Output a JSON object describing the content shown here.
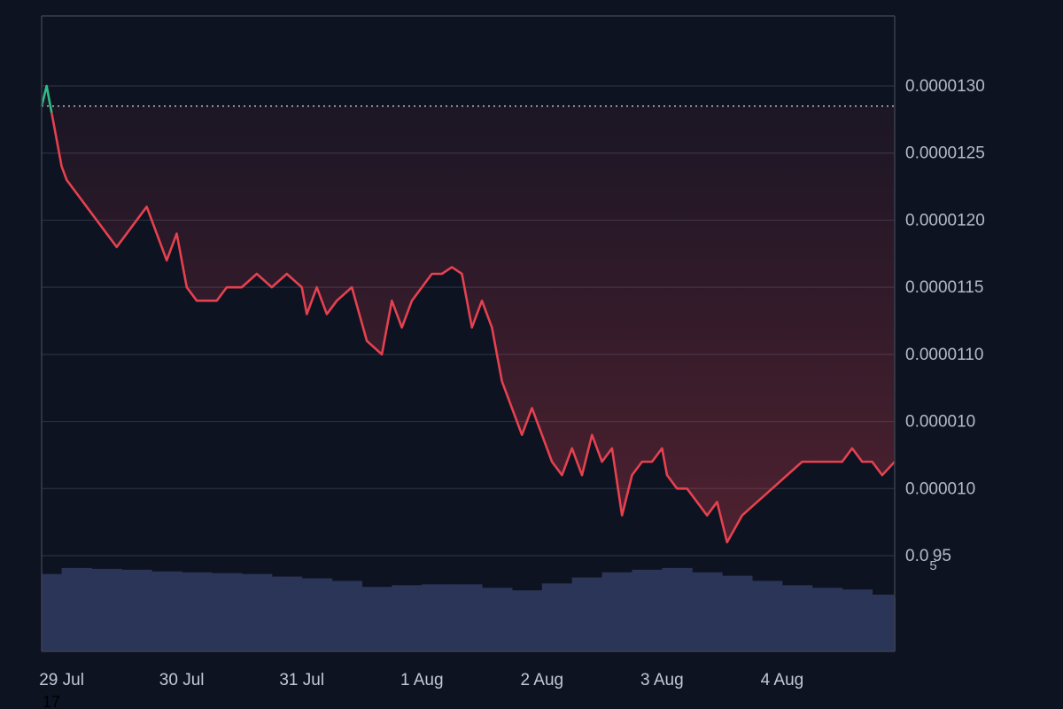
{
  "chart_data": {
    "type": "line",
    "colors": {
      "background": "#0e1322",
      "up": "#2ebd85",
      "down": "#e5414f",
      "volume": "#2b3558",
      "grid": "#2a3040",
      "frame": "#3a404e",
      "reference_line": "#c9ccd3"
    },
    "y_axis": {
      "position": "right",
      "ylim": [
        9.1e-06,
        1.35e-05
      ],
      "ticks": [
        {
          "value": 1.3e-05,
          "label": "0.0000130"
        },
        {
          "value": 1.25e-05,
          "label": "0.0000125"
        },
        {
          "value": 1.2e-05,
          "label": "0.0000120"
        },
        {
          "value": 1.15e-05,
          "label": "0.0000115"
        },
        {
          "value": 1.1e-05,
          "label": "0.0000110"
        },
        {
          "value": 1.05e-05,
          "label": "0.000010",
          "sub": ""
        },
        {
          "value": 1e-05,
          "label": "0.000010",
          "sub": ""
        },
        {
          "value": 9.5e-06,
          "label": "0.0",
          "sub": "5",
          "tail": "95"
        }
      ]
    },
    "x_axis": {
      "range": [
        "2024-07-28 20:00",
        "2024-08-04 22:30"
      ],
      "ticks": [
        {
          "date": "2024-07-29",
          "label": "29 Jul"
        },
        {
          "date": "2024-07-30",
          "label": "30 Jul"
        },
        {
          "date": "2024-07-31",
          "label": "31 Jul"
        },
        {
          "date": "2024-08-01",
          "label": "1 Aug"
        },
        {
          "date": "2024-08-02",
          "label": "2 Aug"
        },
        {
          "date": "2024-08-03",
          "label": "3 Aug"
        },
        {
          "date": "2024-08-04",
          "label": "4 Aug"
        }
      ]
    },
    "reference_value": 1.285e-05,
    "corner_label": "17",
    "price_series": {
      "name": "",
      "x": [
        "2024-07-28 20:00",
        "2024-07-28 21:00",
        "2024-07-28 22:00",
        "2024-07-28 23:00",
        "2024-07-29 00:00",
        "2024-07-29 01:00",
        "2024-07-29 03:00",
        "2024-07-29 05:00",
        "2024-07-29 07:00",
        "2024-07-29 09:00",
        "2024-07-29 11:00",
        "2024-07-29 13:00",
        "2024-07-29 15:00",
        "2024-07-29 17:00",
        "2024-07-29 19:00",
        "2024-07-29 21:00",
        "2024-07-29 23:00",
        "2024-07-30 01:00",
        "2024-07-30 03:00",
        "2024-07-30 05:00",
        "2024-07-30 07:00",
        "2024-07-30 09:00",
        "2024-07-30 12:00",
        "2024-07-30 15:00",
        "2024-07-30 18:00",
        "2024-07-30 21:00",
        "2024-07-31 00:00",
        "2024-07-31 01:00",
        "2024-07-31 03:00",
        "2024-07-31 05:00",
        "2024-07-31 07:00",
        "2024-07-31 10:00",
        "2024-07-31 13:00",
        "2024-07-31 16:00",
        "2024-07-31 18:00",
        "2024-07-31 20:00",
        "2024-07-31 22:00",
        "2024-08-01 00:00",
        "2024-08-01 02:00",
        "2024-08-01 04:00",
        "2024-08-01 06:00",
        "2024-08-01 08:00",
        "2024-08-01 10:00",
        "2024-08-01 12:00",
        "2024-08-01 14:00",
        "2024-08-01 16:00",
        "2024-08-01 18:00",
        "2024-08-01 20:00",
        "2024-08-01 22:00",
        "2024-08-02 00:00",
        "2024-08-02 02:00",
        "2024-08-02 04:00",
        "2024-08-02 06:00",
        "2024-08-02 08:00",
        "2024-08-02 10:00",
        "2024-08-02 12:00",
        "2024-08-02 14:00",
        "2024-08-02 16:00",
        "2024-08-02 18:00",
        "2024-08-02 20:00",
        "2024-08-02 22:00",
        "2024-08-03 00:00",
        "2024-08-03 01:00",
        "2024-08-03 03:00",
        "2024-08-03 05:00",
        "2024-08-03 07:00",
        "2024-08-03 09:00",
        "2024-08-03 11:00",
        "2024-08-03 13:00",
        "2024-08-03 16:00",
        "2024-08-03 19:00",
        "2024-08-03 22:00",
        "2024-08-04 01:00",
        "2024-08-04 04:00",
        "2024-08-04 06:00",
        "2024-08-04 08:00",
        "2024-08-04 10:00",
        "2024-08-04 12:00",
        "2024-08-04 14:00",
        "2024-08-04 16:00",
        "2024-08-04 18:00",
        "2024-08-04 20:00",
        "2024-08-04 22:30"
      ],
      "values": [
        1.285e-05,
        1.3e-05,
        1.28e-05,
        1.26e-05,
        1.24e-05,
        1.23e-05,
        1.22e-05,
        1.21e-05,
        1.2e-05,
        1.19e-05,
        1.18e-05,
        1.19e-05,
        1.2e-05,
        1.21e-05,
        1.19e-05,
        1.17e-05,
        1.19e-05,
        1.15e-05,
        1.14e-05,
        1.14e-05,
        1.14e-05,
        1.15e-05,
        1.15e-05,
        1.16e-05,
        1.15e-05,
        1.16e-05,
        1.15e-05,
        1.13e-05,
        1.15e-05,
        1.13e-05,
        1.14e-05,
        1.15e-05,
        1.11e-05,
        1.1e-05,
        1.14e-05,
        1.12e-05,
        1.14e-05,
        1.15e-05,
        1.16e-05,
        1.16e-05,
        1.165e-05,
        1.16e-05,
        1.12e-05,
        1.14e-05,
        1.12e-05,
        1.08e-05,
        1.06e-05,
        1.04e-05,
        1.06e-05,
        1.04e-05,
        1.02e-05,
        1.01e-05,
        1.03e-05,
        1.01e-05,
        1.04e-05,
        1.02e-05,
        1.03e-05,
        9.8e-06,
        1.01e-05,
        1.02e-05,
        1.02e-05,
        1.03e-05,
        1.01e-05,
        1e-05,
        1e-05,
        9.9e-06,
        9.8e-06,
        9.9e-06,
        9.6e-06,
        9.8e-06,
        9.9e-06,
        1e-05,
        1.01e-05,
        1.02e-05,
        1.02e-05,
        1.02e-05,
        1.02e-05,
        1.02e-05,
        1.03e-05,
        1.02e-05,
        1.02e-05,
        1.01e-05,
        1.02e-05
      ]
    },
    "volume_series": {
      "name": "",
      "x": [
        "2024-07-28 20:00",
        "2024-07-29 00:00",
        "2024-07-29 06:00",
        "2024-07-29 12:00",
        "2024-07-29 18:00",
        "2024-07-30 00:00",
        "2024-07-30 06:00",
        "2024-07-30 12:00",
        "2024-07-30 18:00",
        "2024-07-31 00:00",
        "2024-07-31 06:00",
        "2024-07-31 12:00",
        "2024-07-31 18:00",
        "2024-08-01 00:00",
        "2024-08-01 06:00",
        "2024-08-01 12:00",
        "2024-08-01 18:00",
        "2024-08-02 00:00",
        "2024-08-02 06:00",
        "2024-08-02 12:00",
        "2024-08-02 18:00",
        "2024-08-03 00:00",
        "2024-08-03 06:00",
        "2024-08-03 12:00",
        "2024-08-03 18:00",
        "2024-08-04 00:00",
        "2024-08-04 06:00",
        "2024-08-04 12:00",
        "2024-08-04 18:00",
        "2024-08-04 22:30"
      ],
      "values": [
        90,
        97,
        96,
        95,
        93,
        92,
        91,
        90,
        87,
        85,
        82,
        75,
        77,
        78,
        78,
        74,
        71,
        79,
        86,
        92,
        95,
        97,
        92,
        88,
        82,
        77,
        74,
        72,
        66,
        62
      ]
    }
  }
}
